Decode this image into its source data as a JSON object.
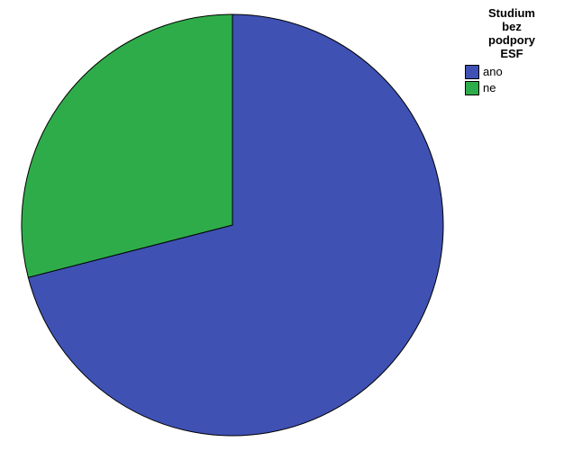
{
  "chart": {
    "type": "pie",
    "background_color": "#ffffff",
    "slice_border_color": "#000000",
    "slice_border_width": 1,
    "slices": [
      {
        "label": "ano",
        "value": 71,
        "color": "#3f51b3"
      },
      {
        "label": "ne",
        "value": 29,
        "color": "#2fac4a"
      }
    ]
  },
  "legend": {
    "title_lines": [
      "Studium",
      "bez",
      "podpory",
      "ESF"
    ],
    "title_fontsize": 13,
    "title_fontweight": "bold",
    "label_fontsize": 13,
    "swatch_border_color": "#000000",
    "items": [
      {
        "label": "ano",
        "color": "#3f51b3"
      },
      {
        "label": "ne",
        "color": "#2fac4a"
      }
    ]
  }
}
